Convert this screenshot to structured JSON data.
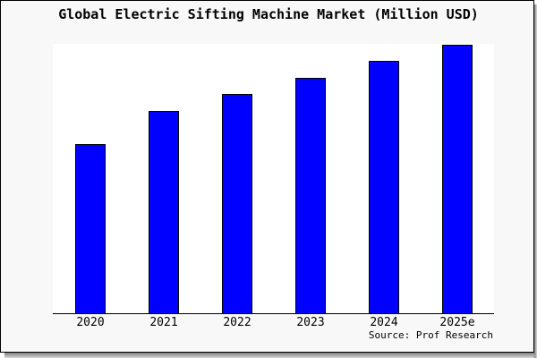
{
  "title": "Global Electric Sifting Machine Market (Million USD)",
  "source": "Source: Prof Research",
  "colors": {
    "bar_fill": "#0000ff",
    "bar_border": "#000000",
    "axis": "#000000",
    "card_background": "#f8f8f8",
    "plot_background": "#ffffff",
    "text": "#000000",
    "shadow": "#7e7e7e"
  },
  "chart_data": {
    "type": "bar",
    "title": "Global Electric Sifting Machine Market (Million USD)",
    "categories": [
      "2020",
      "2021",
      "2022",
      "2023",
      "2024",
      "2025e"
    ],
    "values": [
      189,
      226,
      245,
      263,
      282,
      300
    ],
    "units": "relative bar heights in pixels (no numeric y-axis shown in image)",
    "xlabel": "",
    "ylabel": "",
    "ylim": [
      0,
      302
    ],
    "grid": false,
    "legend": false,
    "source": "Source: Prof Research"
  }
}
